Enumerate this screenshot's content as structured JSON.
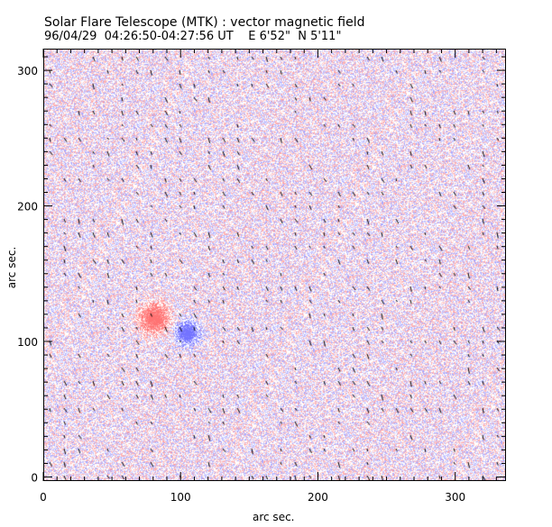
{
  "header": {
    "title": "Solar Flare Telescope (MTK) : vector magnetic field",
    "subtitle": "96/04/29  04:26:50-04:27:56 UT    E 6'52\"  N 5'11\""
  },
  "chart_data": {
    "type": "heatmap",
    "title": "Solar Flare Telescope (MTK) : vector magnetic field",
    "subtitle": "96/04/29  04:26:50-04:27:56 UT    E 6'52\"  N 5'11\"",
    "xlabel": "arc sec.",
    "ylabel": "arc sec.",
    "xlim": [
      0,
      337
    ],
    "ylim": [
      -3,
      316
    ],
    "xticks": [
      0,
      100,
      200,
      300
    ],
    "yticks": [
      0,
      100,
      200,
      300
    ],
    "xtick_labels": [
      "0",
      "100",
      "200",
      "300"
    ],
    "ytick_labels": [
      "0",
      "100",
      "200",
      "300"
    ],
    "minor_tick_step": 10,
    "colors": {
      "positive": "#ff6b6b",
      "negative": "#6b6bff",
      "vector": "#000000"
    },
    "features": [
      {
        "polarity": "positive",
        "x": 80,
        "y": 118,
        "radius": 10
      },
      {
        "polarity": "negative",
        "x": 104,
        "y": 107,
        "radius": 8
      }
    ],
    "vector_field": "short black transverse-field segments on regular grid, mostly oriented NW-SE"
  }
}
